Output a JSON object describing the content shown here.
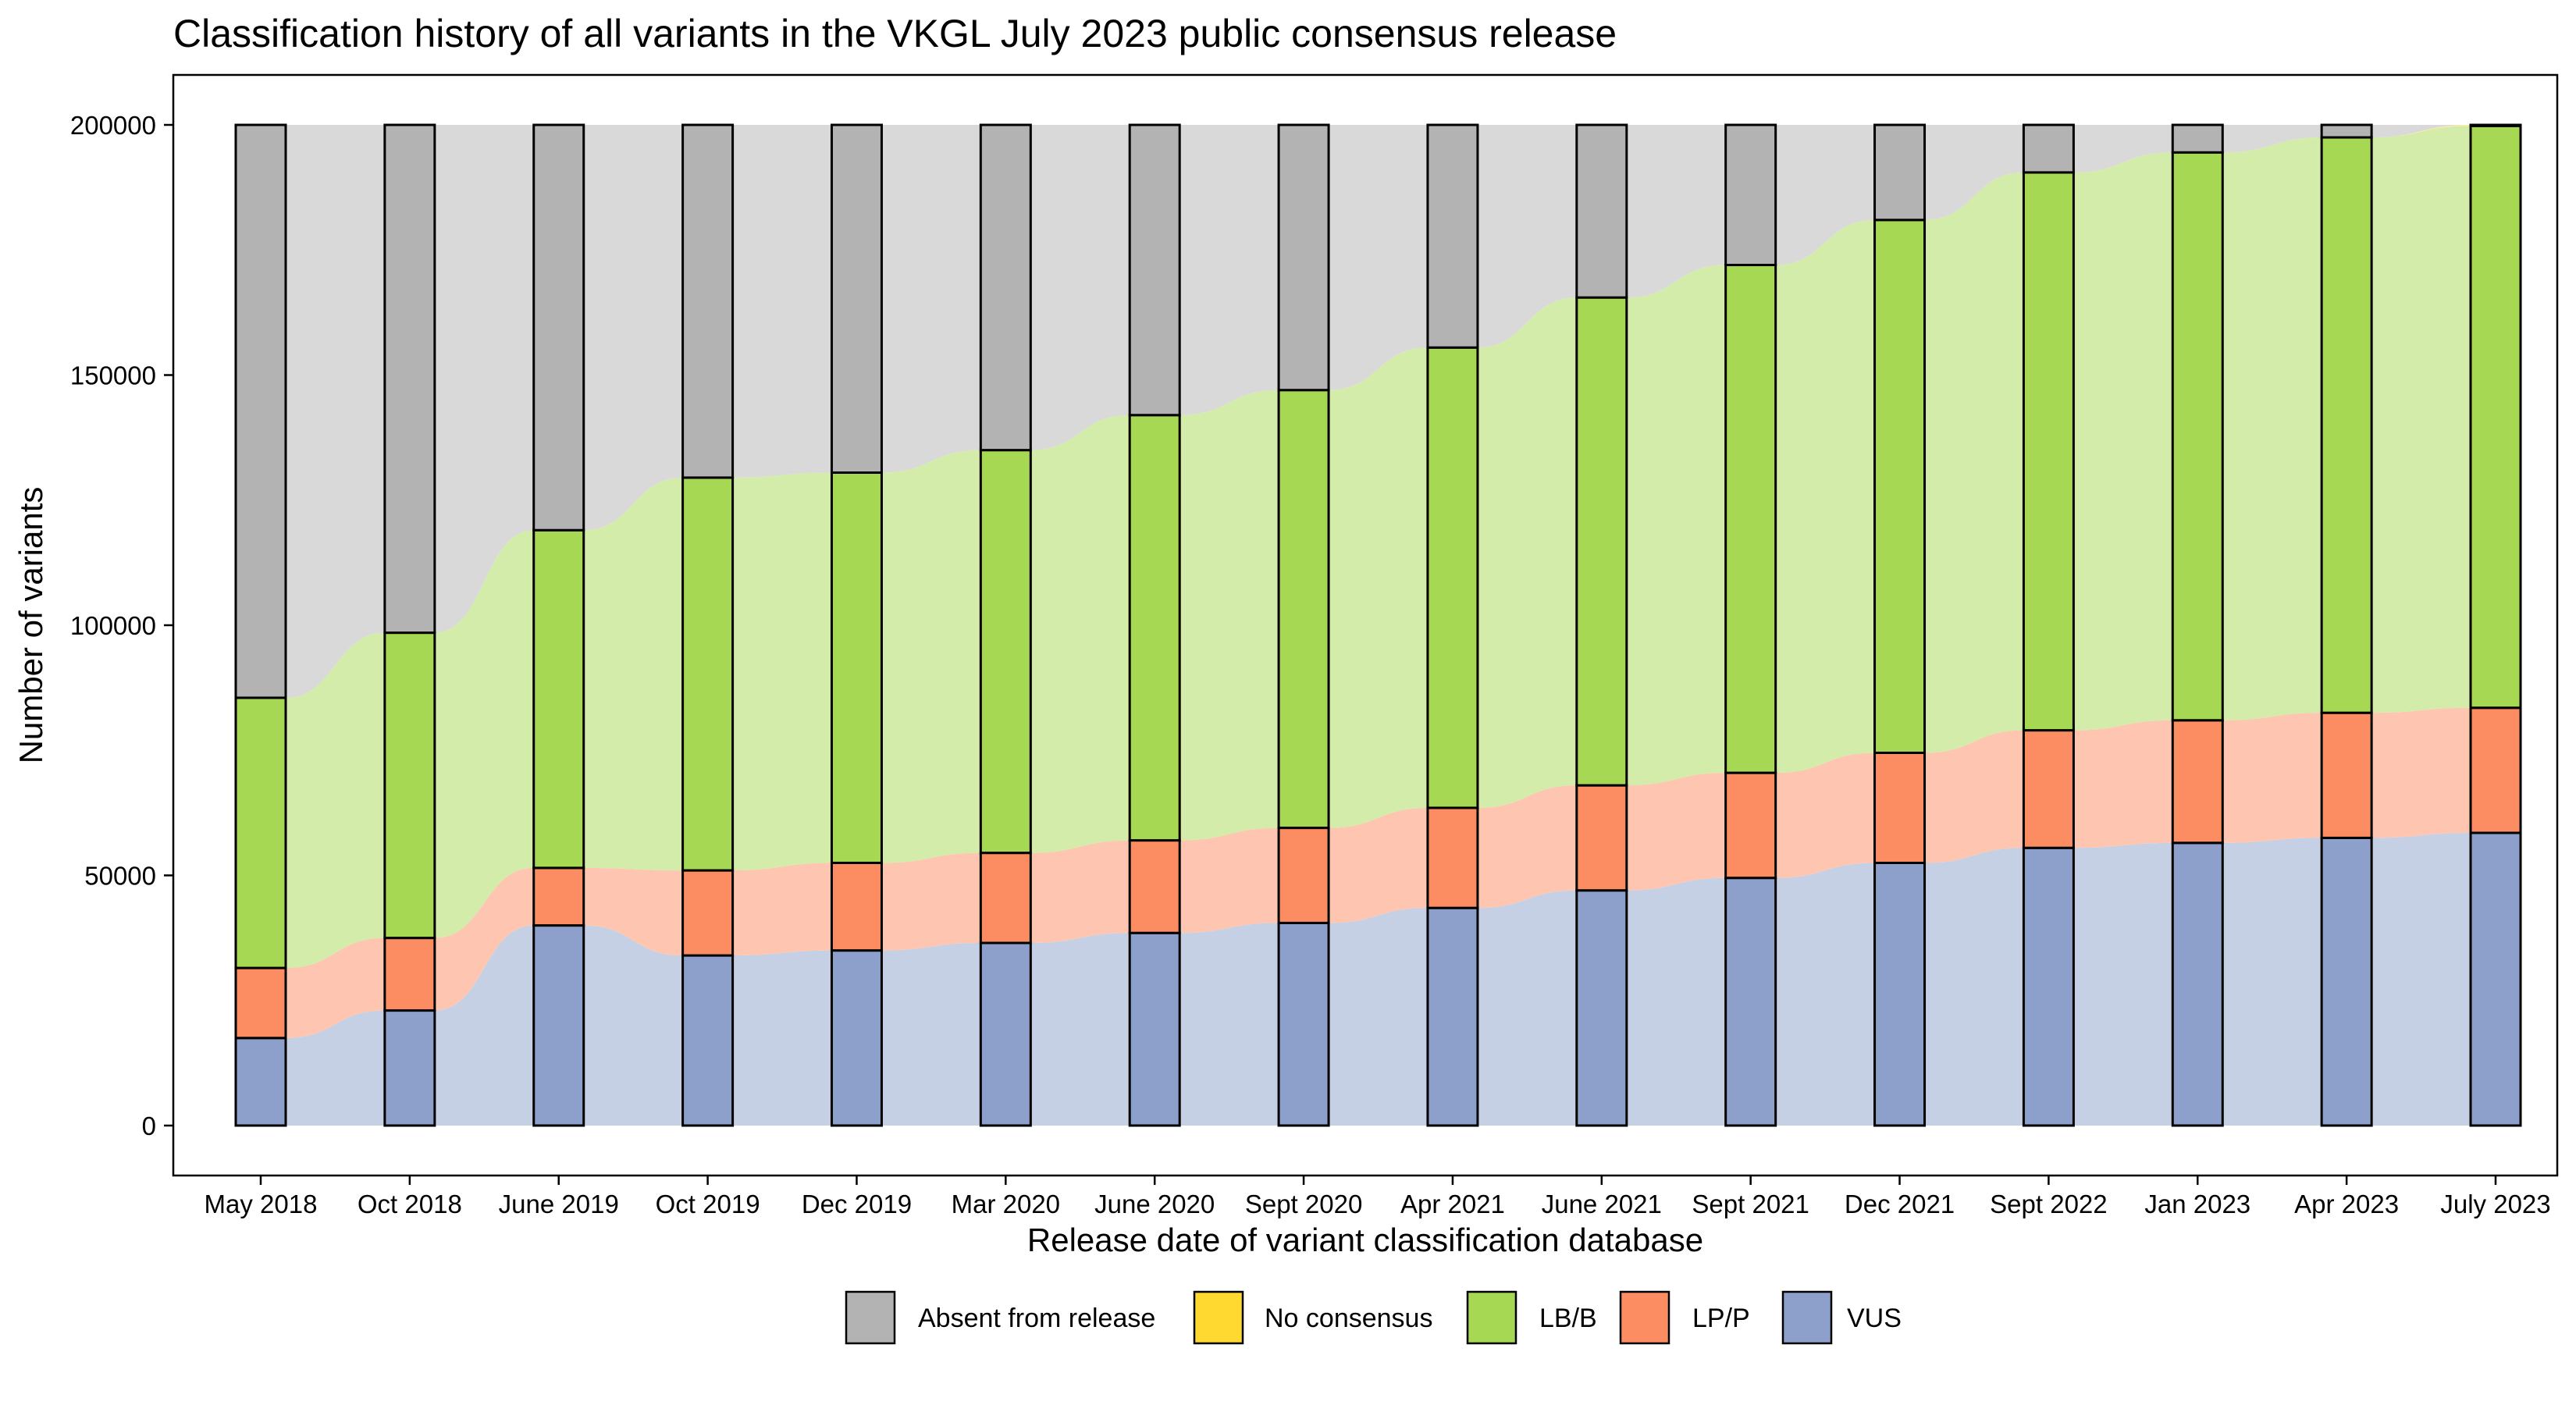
{
  "chart_data": {
    "type": "alluvial",
    "title": "Classification history of all variants in the VKGL July 2023 public consensus release",
    "xlabel": "Release date of variant classification database",
    "ylabel": "Number of variants",
    "ylim": [
      0,
      200000
    ],
    "yticks": [
      0,
      50000,
      100000,
      150000,
      200000
    ],
    "categories": [
      "May 2018",
      "Oct 2018",
      "June 2019",
      "Oct 2019",
      "Dec 2019",
      "Mar 2020",
      "June 2020",
      "Sept 2020",
      "Apr 2021",
      "June 2021",
      "Sept 2021",
      "Dec 2021",
      "Sept 2022",
      "Jan 2023",
      "Apr 2023",
      "July 2023"
    ],
    "series": [
      {
        "name": "VUS",
        "values": [
          17500,
          23000,
          40000,
          34000,
          35000,
          36500,
          38500,
          40500,
          43500,
          47000,
          49500,
          52500,
          55500,
          56500,
          57500,
          58500
        ]
      },
      {
        "name": "LP/P",
        "values": [
          14000,
          14500,
          11500,
          17000,
          17500,
          18000,
          18500,
          19000,
          20000,
          21000,
          21000,
          22000,
          23500,
          24500,
          25000,
          25000
        ]
      },
      {
        "name": "LB/B",
        "values": [
          54000,
          61000,
          67500,
          78500,
          78000,
          80500,
          85000,
          87500,
          92000,
          97500,
          101500,
          106500,
          111500,
          113500,
          115000,
          116300
        ]
      },
      {
        "name": "No consensus",
        "values": [
          0,
          0,
          0,
          0,
          0,
          0,
          0,
          0,
          0,
          0,
          0,
          0,
          0,
          0,
          0,
          200
        ]
      },
      {
        "name": "Absent from release",
        "values": [
          114500,
          101500,
          81000,
          70500,
          69500,
          65000,
          58000,
          53000,
          44500,
          34500,
          28000,
          19000,
          9500,
          5500,
          2500,
          0
        ]
      }
    ],
    "colors": {
      "VUS": "#8da0cb",
      "LP/P": "#fc8d62",
      "LB/B": "#a6d854",
      "No consensus": "#ffd92f",
      "Absent from release": "#b3b3b3"
    },
    "legend": {
      "position": "bottom",
      "items": [
        "Absent from release",
        "No consensus",
        "LB/B",
        "LP/P",
        "VUS"
      ]
    },
    "grid": false
  }
}
